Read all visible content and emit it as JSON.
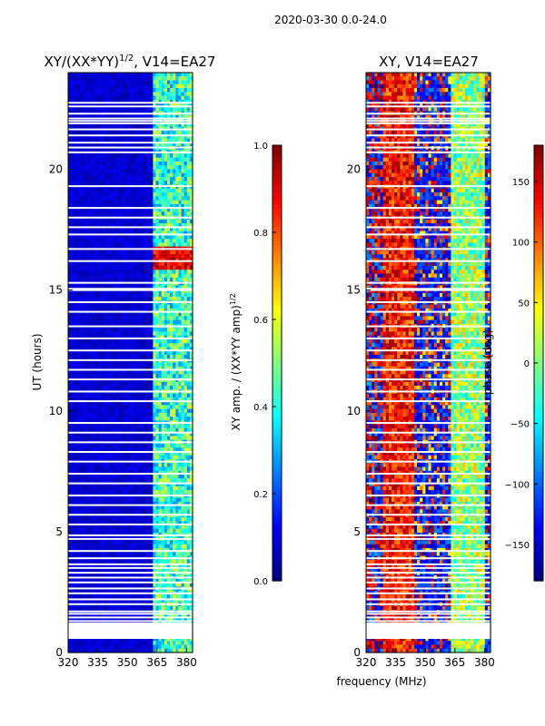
{
  "figure_title": "2020-03-30 0.0-24.0",
  "colors": {
    "jet": [
      "#00007f",
      "#0000ff",
      "#007fff",
      "#00ffff",
      "#7fff7f",
      "#ffff00",
      "#ff7f00",
      "#ff0000",
      "#7f0000"
    ],
    "gap": "#ffffff"
  },
  "chart_data": [
    {
      "type": "heatmap",
      "title": "XY/(XX*YY)^1/2, V14=EA27",
      "title_main": "XY/(XX*YY)",
      "title_sup": "1/2",
      "title_tail": ", V14=EA27",
      "quantity": "normalized XY amplitude",
      "xlabel": "frequency (MHz)",
      "ylabel": "UT (hours)",
      "xlim": [
        320,
        383
      ],
      "ylim": [
        0,
        24
      ],
      "xticks": [
        320,
        335,
        350,
        365,
        380
      ],
      "yticks": [
        0,
        5,
        10,
        15,
        20
      ],
      "colorbar": {
        "label_main": "XY amp. / (XX*YY amp)",
        "label_sup": "1/2",
        "range": [
          0.0,
          1.0
        ],
        "ticks": [
          "0.0",
          "0.2",
          "0.4",
          "0.6",
          "0.8",
          "1.0"
        ],
        "tick_values": [
          0.0,
          0.2,
          0.4,
          0.6,
          0.8,
          1.0
        ]
      }
    },
    {
      "type": "heatmap",
      "title": "XY, V14=EA27",
      "quantity": "XY phase",
      "xlabel": "frequency (MHz)",
      "ylabel": "",
      "xlim": [
        320,
        383
      ],
      "ylim": [
        0,
        24
      ],
      "xticks": [
        320,
        335,
        350,
        365,
        380
      ],
      "yticks": [
        0,
        5,
        10,
        15,
        20
      ],
      "colorbar": {
        "label": "phase (deg)",
        "range": [
          -180,
          180
        ],
        "ticks": [
          "−150",
          "−100",
          "−50",
          "0",
          "50",
          "100",
          "150"
        ],
        "tick_values": [
          -150,
          -100,
          -50,
          0,
          50,
          100,
          150
        ]
      }
    }
  ],
  "shared_xlabel": "frequency (MHz)",
  "data_features": {
    "amp_high_band_mhz": [
      363,
      383
    ],
    "amp_flare_ut_hours": [
      15.8,
      16.8
    ],
    "phase_red_band_mhz": [
      328,
      344
    ],
    "phase_green_band_mhz": [
      363,
      380
    ],
    "gap_ut_hours": [
      0.6,
      0.65,
      1.0,
      1.05,
      1.1,
      1.15,
      1.2,
      1.3,
      1.45,
      1.6,
      1.7,
      2.0,
      2.2,
      2.45,
      2.65,
      2.9,
      3.1,
      3.3,
      3.5,
      3.65,
      3.9,
      4.2,
      4.7,
      4.85,
      5.3,
      5.7,
      6.1,
      6.5,
      7.0,
      7.4,
      7.9,
      8.3,
      8.7,
      9.1,
      9.5,
      10.4,
      10.8,
      11.3,
      11.7,
      12.1,
      12.5,
      13.0,
      13.5,
      14.1,
      14.5,
      15.0,
      15.05,
      15.3,
      16.2,
      16.7,
      17.3,
      17.6,
      18.0,
      18.4,
      19.3,
      20.7,
      20.9,
      21.1,
      21.4,
      21.65,
      21.9,
      22.0,
      22.1,
      22.3,
      22.6,
      22.75
    ]
  }
}
